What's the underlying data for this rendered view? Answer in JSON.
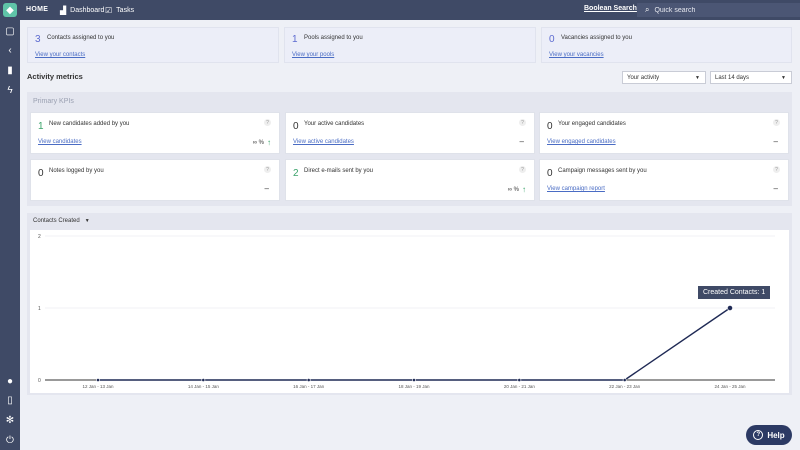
{
  "topbar": {
    "home": "HOME",
    "tabs": [
      {
        "label": "Dashboard",
        "icon": "bar-chart-icon"
      },
      {
        "label": "Tasks",
        "icon": "checkbox-icon"
      }
    ],
    "boolean_search": "Boolean Search",
    "search_placeholder": "Quick search"
  },
  "summary": [
    {
      "value": "3",
      "label": "Contacts assigned to you",
      "link": "View your contacts"
    },
    {
      "value": "1",
      "label": "Pools assigned to you",
      "link": "View your pools"
    },
    {
      "value": "0",
      "label": "Vacancies assigned to you",
      "link": "View your vacancies"
    }
  ],
  "activity": {
    "title": "Activity metrics",
    "scope_select": "Your activity",
    "range_select": "Last 14 days"
  },
  "kpis": {
    "title": "Primary KPIs",
    "items": [
      {
        "value": "1",
        "label": "New candidates added by you",
        "link": "View candidates",
        "trend": "∞ %"
      },
      {
        "value": "0",
        "label": "Your active candidates",
        "link": "View active candidates",
        "trend": "–"
      },
      {
        "value": "0",
        "label": "Your engaged candidates",
        "link": "View engaged candidates",
        "trend": "–"
      },
      {
        "value": "0",
        "label": "Notes logged by you",
        "link": "",
        "trend": "–"
      },
      {
        "value": "2",
        "label": "Direct e-mails sent by you",
        "link": "",
        "trend": "∞ %"
      },
      {
        "value": "0",
        "label": "Campaign messages sent by you",
        "link": "View campaign report",
        "trend": "–"
      }
    ]
  },
  "chart_data": {
    "type": "line",
    "title": "Contacts Created",
    "categories": [
      "12 Jan - 13 Jan",
      "14 Jan - 15 Jan",
      "16 Jan - 17 Jan",
      "18 Jan - 19 Jan",
      "20 Jan - 21 Jan",
      "22 Jan - 23 Jan",
      "24 Jan - 25 Jan"
    ],
    "series": [
      {
        "name": "Created Contacts",
        "values": [
          0,
          0,
          0,
          0,
          0,
          0,
          1
        ]
      }
    ],
    "ylim": [
      0,
      2
    ],
    "yticks": [
      "0",
      "1",
      "2"
    ],
    "tooltip": "Created Contacts: 1",
    "line_color": "#1f2a55"
  },
  "help_button": "Help"
}
